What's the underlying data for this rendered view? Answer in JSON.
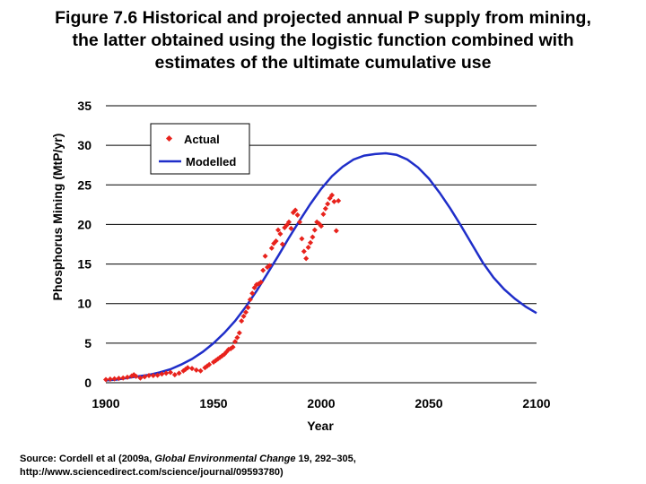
{
  "title_lines": [
    "Figure 7.6 Historical and projected annual P supply from mining,",
    "the latter obtained using the logistic function combined with",
    "estimates of the ultimate cumulative use"
  ],
  "source": {
    "prefix": "Source: Cordell et al (2009a, ",
    "journal": "Global Environmental Change",
    "suffix": " 19, 292–305,",
    "line2": "http://www.sciencedirect.com/science/journal/09593780)"
  },
  "colors": {
    "actual": "#e8221c",
    "modelled": "#1f2ec9",
    "grid": "#000000"
  },
  "chart_data": {
    "type": "scatter",
    "title": "",
    "xlabel": "Year",
    "ylabel": "Phosphorus Mining (MtP/yr)",
    "xlim": [
      1900,
      2100
    ],
    "ylim": [
      0,
      35
    ],
    "xticks": [
      1900,
      1950,
      2000,
      2050,
      2100
    ],
    "yticks": [
      0,
      5,
      10,
      15,
      20,
      25,
      30,
      35
    ],
    "xtick_labels": [
      "1900",
      "1950",
      "2000",
      "2050",
      "2100"
    ],
    "ytick_labels": [
      "0",
      "5",
      "10",
      "15",
      "20",
      "25",
      "30",
      "35"
    ],
    "grid": "horizontal",
    "legend_position": "top-left",
    "series": [
      {
        "name": "Actual",
        "kind": "markers",
        "x": [
          1900,
          1902,
          1904,
          1906,
          1908,
          1910,
          1912,
          1913,
          1914,
          1916,
          1918,
          1920,
          1922,
          1924,
          1926,
          1928,
          1930,
          1932,
          1934,
          1936,
          1937,
          1938,
          1940,
          1942,
          1944,
          1946,
          1947,
          1948,
          1950,
          1951,
          1952,
          1953,
          1954,
          1955,
          1956,
          1957,
          1958,
          1959,
          1960,
          1961,
          1962,
          1963,
          1964,
          1965,
          1966,
          1967,
          1968,
          1969,
          1970,
          1971,
          1972,
          1973,
          1974,
          1975,
          1976,
          1977,
          1978,
          1979,
          1980,
          1981,
          1982,
          1983,
          1984,
          1985,
          1986,
          1987,
          1988,
          1989,
          1990,
          1991,
          1992,
          1993,
          1994,
          1995,
          1996,
          1997,
          1998,
          1999,
          2000,
          2001,
          2002,
          2003,
          2004,
          2005,
          2006,
          2007,
          2008
        ],
        "y": [
          0.4,
          0.45,
          0.5,
          0.55,
          0.6,
          0.7,
          0.85,
          1.0,
          0.8,
          0.6,
          0.75,
          0.9,
          0.9,
          0.95,
          1.1,
          1.2,
          1.3,
          1.0,
          1.2,
          1.5,
          1.7,
          1.9,
          1.8,
          1.6,
          1.5,
          1.9,
          2.1,
          2.3,
          2.6,
          2.8,
          3.0,
          3.2,
          3.4,
          3.6,
          3.9,
          4.2,
          4.3,
          4.5,
          5.2,
          5.7,
          6.3,
          7.8,
          8.4,
          8.9,
          9.5,
          10.5,
          11.3,
          12.0,
          12.4,
          12.5,
          12.7,
          14.2,
          16.0,
          14.6,
          14.8,
          17.0,
          17.6,
          17.9,
          19.3,
          18.8,
          17.5,
          19.6,
          19.9,
          20.3,
          19.5,
          21.5,
          21.8,
          21.2,
          20.3,
          18.2,
          16.6,
          15.7,
          17.1,
          17.7,
          18.4,
          19.3,
          20.3,
          20.1,
          19.8,
          21.3,
          22.0,
          22.6,
          23.3,
          23.7,
          22.9,
          19.2,
          23.0
        ]
      },
      {
        "name": "Modelled",
        "kind": "line",
        "x": [
          1900,
          1905,
          1910,
          1915,
          1920,
          1925,
          1930,
          1935,
          1940,
          1945,
          1950,
          1955,
          1960,
          1965,
          1970,
          1975,
          1980,
          1985,
          1990,
          1995,
          2000,
          2005,
          2010,
          2015,
          2020,
          2025,
          2030,
          2035,
          2040,
          2045,
          2050,
          2055,
          2060,
          2065,
          2070,
          2075,
          2080,
          2085,
          2090,
          2095,
          2100
        ],
        "y": [
          0.3,
          0.4,
          0.6,
          0.8,
          1.0,
          1.3,
          1.7,
          2.3,
          3.0,
          3.9,
          5.0,
          6.3,
          7.8,
          9.6,
          11.6,
          13.8,
          16.0,
          18.3,
          20.5,
          22.6,
          24.5,
          26.1,
          27.3,
          28.2,
          28.7,
          28.9,
          29.0,
          28.8,
          28.2,
          27.2,
          25.8,
          24.0,
          22.0,
          19.8,
          17.5,
          15.2,
          13.3,
          11.8,
          10.6,
          9.6,
          8.8
        ]
      }
    ]
  }
}
